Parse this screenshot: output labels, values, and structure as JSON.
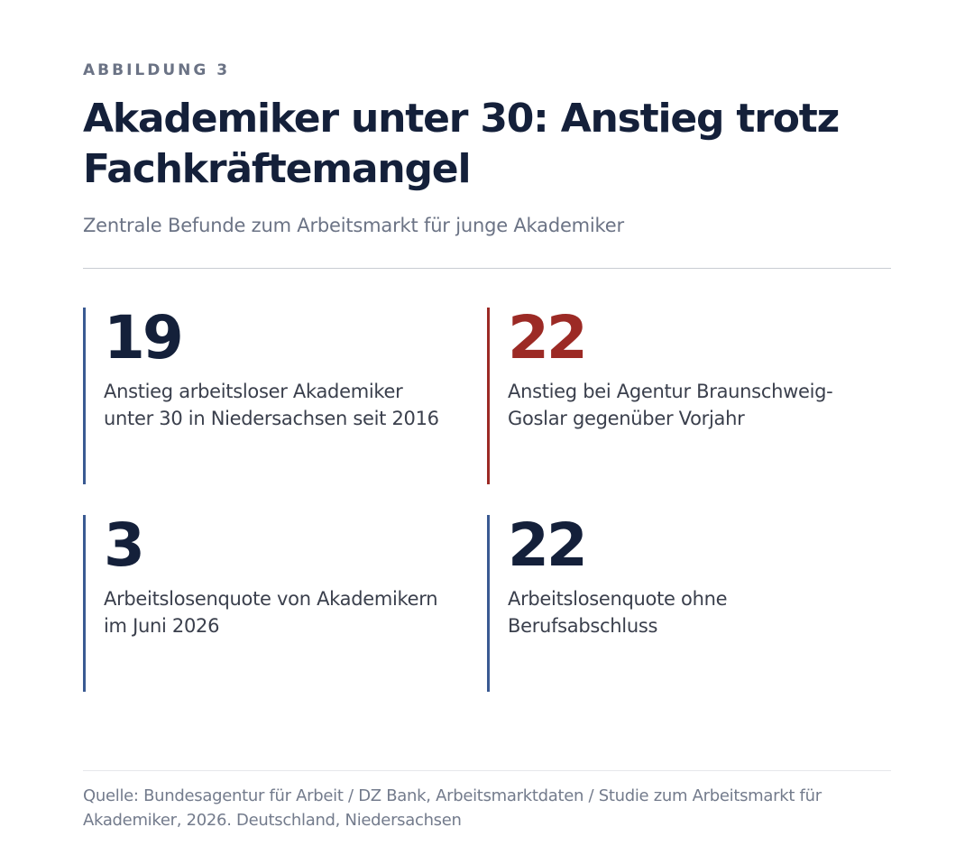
{
  "figure": {
    "eyebrow": "ABBILDUNG 3",
    "title": "Akademiker unter 30: Anstieg trotz Fachkräftemangel",
    "subtitle": "Zentrale Befunde zum Arbeitsmarkt für junge Akademiker"
  },
  "stats": [
    {
      "value": "19",
      "label": "Anstieg arbeitsloser Akademiker unter 30 in Niedersachsen seit 2016",
      "accent": "#3a5a92"
    },
    {
      "value": "22",
      "label": "Anstieg bei Agentur Braunschweig-Goslar gegenüber Vorjahr",
      "accent": "#9c2a25"
    },
    {
      "value": "3",
      "label": "Arbeitslosenquote von Akademikern im Juni 2026",
      "accent": "#3a5a92"
    },
    {
      "value": "22",
      "label": "Arbeitslosenquote ohne Berufsabschluss",
      "accent": "#3a5a92"
    }
  ],
  "footer": {
    "source": "Quelle: Bundesagentur für Arbeit / DZ Bank, Arbeitsmarktdaten / Studie zum Arbeitsmarkt für Akademiker, 2026. Deutschland, Niedersachsen"
  },
  "colors": {
    "title": "#14203a",
    "muted": "#6b7385",
    "blue_accent": "#3a5a92",
    "red_accent": "#9c2a25"
  }
}
